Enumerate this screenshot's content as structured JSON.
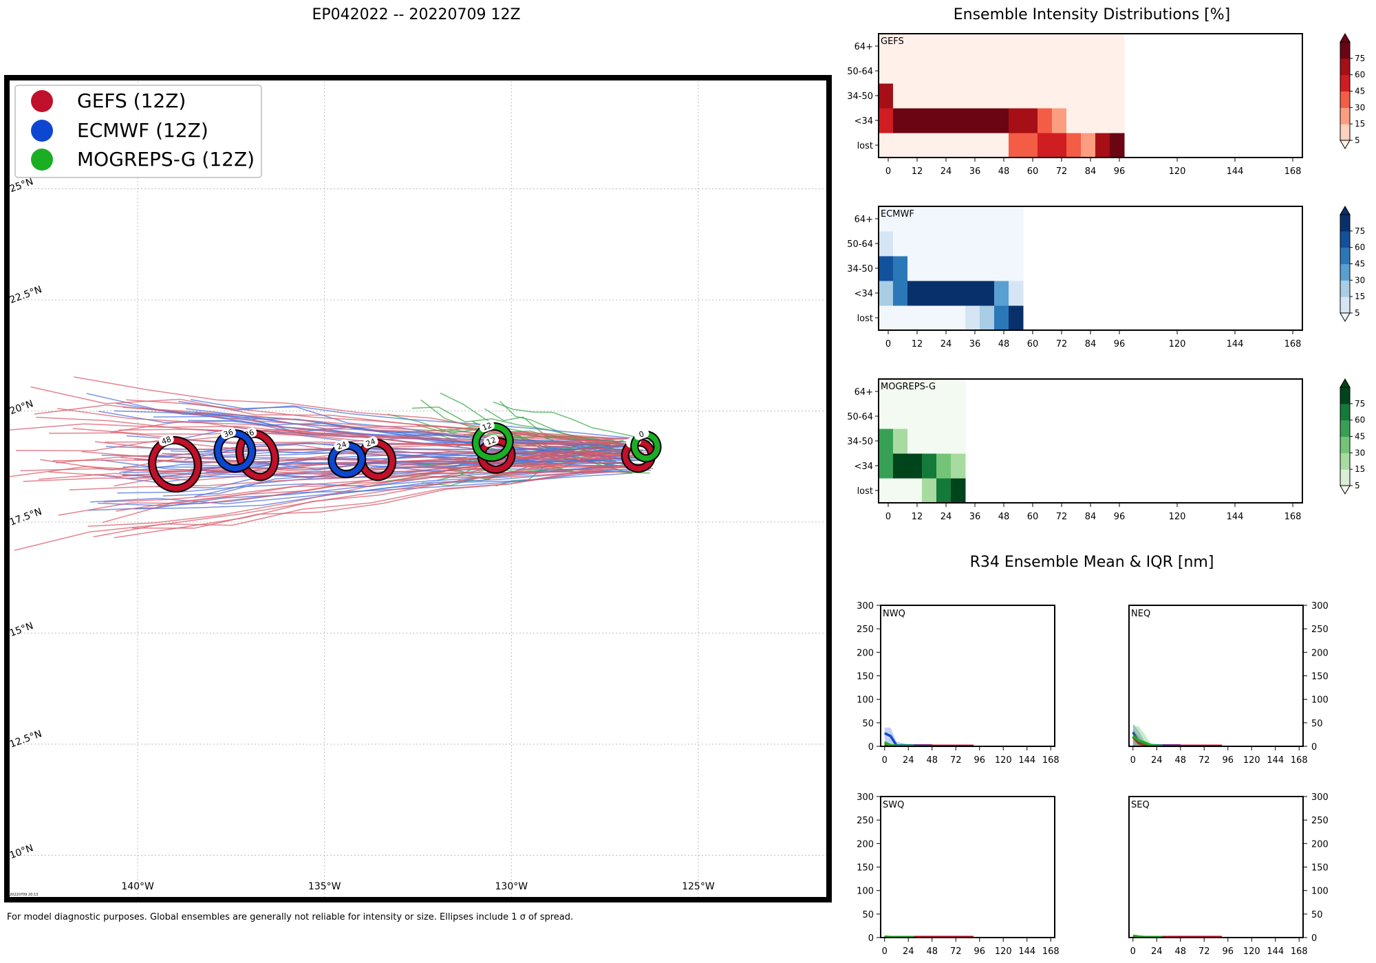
{
  "figure": {
    "map_title": "EP042022 -- 20220709 12Z",
    "intensity_title": "Ensemble Intensity Distributions [%]",
    "r34_title": "R34 Ensemble Mean & IQR [nm]",
    "footnote": "For model diagnostic purposes. Global ensembles are generally not reliable for intensity or size. Ellipses include 1 σ of spread.",
    "stamp": "20220709 20:13"
  },
  "colors": {
    "gefs": "#c0102a",
    "ecmwf": "#0d47d1",
    "mogreps": "#1aae23",
    "gefs_track": "#d95a6a",
    "ecmwf_track": "#4b6fd9",
    "mogreps_track": "#3aa846"
  },
  "chart_data": [
    {
      "type": "track_map",
      "title": "EP042022 -- 20220709 12Z",
      "xlim": [
        -143.5,
        -121.5
      ],
      "ylim": [
        9.0,
        27.5
      ],
      "lon_ticks": [
        -140,
        -135,
        -130,
        -125
      ],
      "lon_tick_labels": [
        "140°W",
        "135°W",
        "130°W",
        "125°W"
      ],
      "lat_ticks": [
        10,
        12.5,
        15,
        17.5,
        20,
        22.5,
        25
      ],
      "lat_tick_labels": [
        "10°N",
        "12.5°N",
        "15°N",
        "17.5°N",
        "20°N",
        "22.5°N",
        "25°N"
      ],
      "legend": [
        {
          "label": "GEFS (12Z)",
          "color": "#c0102a"
        },
        {
          "label": "ECMWF (12Z)",
          "color": "#0d47d1"
        },
        {
          "label": "MOGREPS-G (12Z)",
          "color": "#1aae23"
        }
      ],
      "mean_positions": [
        {
          "model": "GEFS",
          "hour": "0",
          "lon": -126.6,
          "lat": 19.0,
          "rx": 0.3,
          "ry": 0.25,
          "color": "#c0102a"
        },
        {
          "model": "MOGREPS-G",
          "hour": "0",
          "lon": -126.4,
          "lat": 19.2,
          "rx": 0.25,
          "ry": 0.22,
          "color": "#1aae23"
        },
        {
          "model": "GEFS",
          "hour": "12",
          "lon": -130.4,
          "lat": 19.0,
          "rx": 0.35,
          "ry": 0.27,
          "color": "#c0102a"
        },
        {
          "model": "MOGREPS-G",
          "hour": "12",
          "lon": -130.5,
          "lat": 19.3,
          "rx": 0.4,
          "ry": 0.3,
          "color": "#1aae23"
        },
        {
          "model": "GEFS",
          "hour": "24",
          "lon": -133.6,
          "lat": 18.9,
          "rx": 0.35,
          "ry": 0.34,
          "color": "#c0102a"
        },
        {
          "model": "ECMWF",
          "hour": "24",
          "lon": -134.4,
          "lat": 18.9,
          "rx": 0.35,
          "ry": 0.27,
          "color": "#0d47d1"
        },
        {
          "model": "GEFS",
          "hour": "36",
          "lon": -136.8,
          "lat": 19.0,
          "rx": 0.4,
          "ry": 0.45,
          "color": "#c0102a"
        },
        {
          "model": "ECMWF",
          "hour": "36",
          "lon": -137.4,
          "lat": 19.1,
          "rx": 0.4,
          "ry": 0.35,
          "color": "#0d47d1"
        },
        {
          "model": "GEFS",
          "hour": "48",
          "lon": -139.0,
          "lat": 18.8,
          "rx": 0.55,
          "ry": 0.5,
          "color": "#c0102a"
        }
      ]
    },
    {
      "type": "heatmap",
      "name": "GEFS",
      "x_ticks": [
        0,
        12,
        24,
        36,
        48,
        60,
        72,
        84,
        96,
        120,
        144,
        168
      ],
      "y_categories": [
        "lost",
        "<34",
        "34-50",
        "50-64",
        "64+"
      ],
      "cell_hours": 6,
      "colorbar_ticks": [
        5,
        15,
        30,
        45,
        60,
        75
      ],
      "palette": [
        "#fff0e9",
        "#fcd1bd",
        "#fc9d80",
        "#f35d45",
        "#cf1d22",
        "#a50f15",
        "#6b0413"
      ],
      "values": {
        "lost": [
          0,
          0,
          0,
          0,
          0,
          0,
          0,
          0,
          0,
          3,
          3,
          4,
          4,
          3,
          2,
          5,
          6
        ],
        "<34": [
          4,
          6,
          6,
          6,
          6,
          6,
          6,
          6,
          6,
          5,
          5,
          3,
          2,
          0,
          0,
          0,
          0
        ],
        "34-50": [
          5,
          0,
          0,
          0,
          0,
          0,
          0,
          0,
          0,
          0,
          0,
          0,
          0,
          0,
          0,
          0,
          0
        ],
        "50-64": [
          0,
          0,
          0,
          0,
          0,
          0,
          0,
          0,
          0,
          0,
          0,
          0,
          0,
          0,
          0,
          0,
          0
        ],
        "64+": [
          0,
          0,
          0,
          0,
          0,
          0,
          0,
          0,
          0,
          0,
          0,
          0,
          0,
          0,
          0,
          0,
          0
        ]
      }
    },
    {
      "type": "heatmap",
      "name": "ECMWF",
      "x_ticks": [
        0,
        12,
        24,
        36,
        48,
        60,
        72,
        84,
        96,
        120,
        144,
        168
      ],
      "y_categories": [
        "lost",
        "<34",
        "34-50",
        "50-64",
        "64+"
      ],
      "cell_hours": 6,
      "colorbar_ticks": [
        5,
        15,
        30,
        45,
        60,
        75
      ],
      "palette": [
        "#f2f7fd",
        "#d6e5f4",
        "#a8cde4",
        "#5a9fd1",
        "#2b78b8",
        "#12519b",
        "#08306b"
      ],
      "values": {
        "lost": [
          0,
          0,
          0,
          0,
          0,
          0,
          1,
          2,
          4,
          6
        ],
        "<34": [
          2,
          4,
          6,
          6,
          6,
          6,
          6,
          6,
          3,
          1
        ],
        "34-50": [
          5,
          4,
          0,
          0,
          0,
          0,
          0,
          0,
          0,
          0
        ],
        "50-64": [
          1,
          0,
          0,
          0,
          0,
          0,
          0,
          0,
          0,
          0
        ],
        "64+": [
          0,
          0,
          0,
          0,
          0,
          0,
          0,
          0,
          0,
          0
        ]
      }
    },
    {
      "type": "heatmap",
      "name": "MOGREPS-G",
      "x_ticks": [
        0,
        12,
        24,
        36,
        48,
        60,
        72,
        84,
        96,
        120,
        144,
        168
      ],
      "y_categories": [
        "lost",
        "<34",
        "34-50",
        "50-64",
        "64+"
      ],
      "cell_hours": 6,
      "colorbar_ticks": [
        5,
        15,
        30,
        45,
        60,
        75
      ],
      "palette": [
        "#f3faf1",
        "#d8efd3",
        "#a7dba0",
        "#73c476",
        "#38a055",
        "#137a3a",
        "#00441b"
      ],
      "values": {
        "lost": [
          0,
          0,
          0,
          2,
          5,
          6
        ],
        "<34": [
          4,
          6,
          6,
          5,
          3,
          2
        ],
        "34-50": [
          4,
          2,
          0,
          0,
          0,
          0
        ],
        "50-64": [
          0,
          0,
          0,
          0,
          0,
          0
        ],
        "64+": [
          0,
          0,
          0,
          0,
          0,
          0
        ]
      }
    },
    {
      "type": "line",
      "name": "NWQ",
      "x_ticks": [
        0,
        24,
        48,
        72,
        96,
        120,
        144,
        168
      ],
      "y_ticks": [
        0,
        50,
        100,
        150,
        200,
        250,
        300
      ],
      "xlim": [
        -4,
        172
      ],
      "ylim": [
        0,
        300
      ],
      "y_axis_side": "left",
      "series": [
        {
          "name": "ECMWF",
          "x": [
            0,
            6,
            12,
            24,
            48
          ],
          "values": [
            28,
            22,
            2,
            2,
            2
          ],
          "iqr_upper": [
            40,
            40,
            10,
            4,
            4
          ]
        },
        {
          "name": "GEFS",
          "x": [
            0,
            6,
            12,
            24,
            48,
            72,
            90
          ],
          "values": [
            4,
            2,
            1,
            1,
            1,
            1,
            1
          ],
          "iqr_upper": [
            8,
            6,
            3,
            2,
            2,
            2,
            2
          ]
        },
        {
          "name": "MOGREPS-G",
          "x": [
            0,
            6,
            12,
            24,
            30
          ],
          "values": [
            8,
            2,
            1,
            1,
            1
          ],
          "iqr_upper": [
            12,
            6,
            3,
            2,
            2
          ]
        }
      ]
    },
    {
      "type": "line",
      "name": "NEQ",
      "x_ticks": [
        0,
        24,
        48,
        72,
        96,
        120,
        144,
        168
      ],
      "y_ticks": [
        0,
        50,
        100,
        150,
        200,
        250,
        300
      ],
      "xlim": [
        -4,
        172
      ],
      "ylim": [
        0,
        300
      ],
      "y_axis_side": "right",
      "series": [
        {
          "name": "ECMWF",
          "x": [
            0,
            6,
            12,
            24,
            48
          ],
          "values": [
            30,
            8,
            2,
            2,
            2
          ],
          "iqr_upper": [
            48,
            32,
            10,
            4,
            4
          ]
        },
        {
          "name": "GEFS",
          "x": [
            0,
            6,
            12,
            24,
            48,
            72,
            90
          ],
          "values": [
            20,
            6,
            2,
            1,
            1,
            1,
            1
          ],
          "iqr_upper": [
            35,
            20,
            6,
            2,
            2,
            2,
            2
          ]
        },
        {
          "name": "MOGREPS-G",
          "x": [
            0,
            6,
            12,
            18,
            24,
            30
          ],
          "values": [
            22,
            12,
            8,
            2,
            1,
            1
          ],
          "iqr_upper": [
            45,
            42,
            25,
            6,
            2,
            2
          ]
        }
      ]
    },
    {
      "type": "line",
      "name": "SWQ",
      "x_ticks": [
        0,
        24,
        48,
        72,
        96,
        120,
        144,
        168
      ],
      "y_ticks": [
        0,
        50,
        100,
        150,
        200,
        250,
        300
      ],
      "xlim": [
        -4,
        172
      ],
      "ylim": [
        0,
        300
      ],
      "y_axis_side": "left",
      "series": [
        {
          "name": "ECMWF",
          "x": [
            0,
            6,
            12,
            24,
            48
          ],
          "values": [
            1,
            1,
            1,
            1,
            1
          ],
          "iqr_upper": [
            2,
            2,
            2,
            2,
            2
          ]
        },
        {
          "name": "GEFS",
          "x": [
            0,
            6,
            12,
            24,
            48,
            72,
            90
          ],
          "values": [
            1,
            1,
            1,
            1,
            1,
            1,
            1
          ],
          "iqr_upper": [
            2,
            2,
            2,
            2,
            2,
            2,
            2
          ]
        },
        {
          "name": "MOGREPS-G",
          "x": [
            0,
            6,
            12,
            24,
            30
          ],
          "values": [
            2,
            1,
            1,
            1,
            1
          ],
          "iqr_upper": [
            3,
            2,
            2,
            2,
            2
          ]
        }
      ]
    },
    {
      "type": "line",
      "name": "SEQ",
      "x_ticks": [
        0,
        24,
        48,
        72,
        96,
        120,
        144,
        168
      ],
      "y_ticks": [
        0,
        50,
        100,
        150,
        200,
        250,
        300
      ],
      "xlim": [
        -4,
        172
      ],
      "ylim": [
        0,
        300
      ],
      "y_axis_side": "right",
      "series": [
        {
          "name": "ECMWF",
          "x": [
            0,
            6,
            12,
            24,
            48
          ],
          "values": [
            1,
            1,
            1,
            1,
            1
          ],
          "iqr_upper": [
            2,
            2,
            2,
            2,
            2
          ]
        },
        {
          "name": "GEFS",
          "x": [
            0,
            6,
            12,
            24,
            48,
            72,
            90
          ],
          "values": [
            1,
            1,
            1,
            1,
            1,
            1,
            1
          ],
          "iqr_upper": [
            2,
            2,
            2,
            2,
            2,
            2,
            2
          ]
        },
        {
          "name": "MOGREPS-G",
          "x": [
            0,
            6,
            12,
            24,
            30
          ],
          "values": [
            4,
            2,
            1,
            1,
            1
          ],
          "iqr_upper": [
            6,
            3,
            2,
            2,
            2
          ]
        }
      ]
    }
  ]
}
